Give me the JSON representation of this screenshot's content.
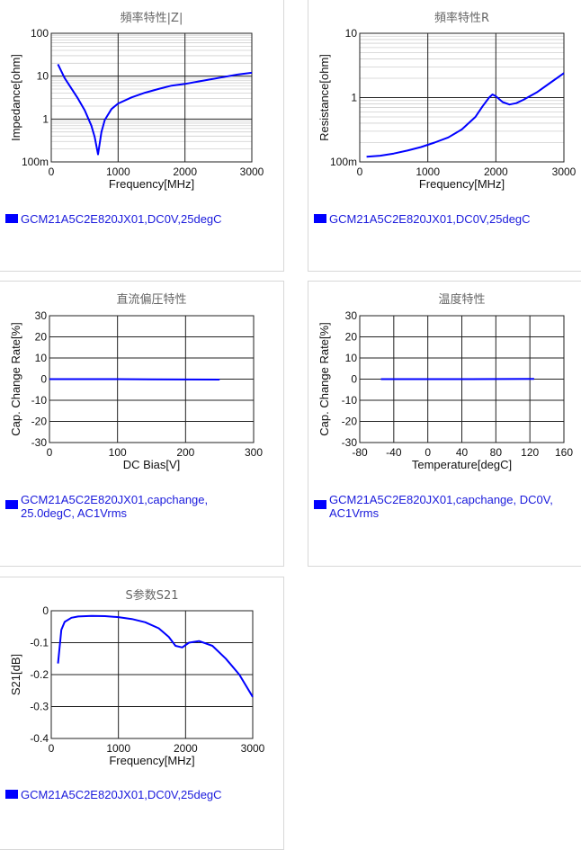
{
  "charts": [
    {
      "id": "z",
      "title": "頻率特性|Z|",
      "type": "line",
      "xlabel": "Frequency[MHz]",
      "ylabel": "Impedance[ohm]",
      "xlim": [
        0,
        3000
      ],
      "ylim": [
        0.1,
        100
      ],
      "yscale": "log",
      "x_ticks": [
        "0",
        "1000",
        "2000",
        "3000"
      ],
      "y_ticks": [
        "100m",
        "1",
        "10",
        "100"
      ],
      "grid": true,
      "series": [
        {
          "name": "GCM21A5C2E820JX01,DC0V,25degC",
          "color": "#0000ff",
          "x": [
            100,
            200,
            300,
            400,
            500,
            600,
            650,
            700,
            750,
            800,
            900,
            1000,
            1200,
            1400,
            1600,
            1800,
            2000,
            2200,
            2400,
            2600,
            2800,
            3000
          ],
          "y": [
            19,
            9,
            5.2,
            3.0,
            1.6,
            0.7,
            0.38,
            0.15,
            0.5,
            0.95,
            1.7,
            2.3,
            3.2,
            4.1,
            5.0,
            6.0,
            6.6,
            7.5,
            8.5,
            9.7,
            11,
            12
          ]
        }
      ],
      "legend": "GCM21A5C2E820JX01,DC0V,25degC"
    },
    {
      "id": "r",
      "title": "頻率特性R",
      "type": "line",
      "xlabel": "Frequency[MHz]",
      "ylabel": "Resistance[ohm]",
      "xlim": [
        0,
        3000
      ],
      "ylim": [
        0.1,
        10
      ],
      "yscale": "log",
      "x_ticks": [
        "0",
        "1000",
        "2000",
        "3000"
      ],
      "y_ticks": [
        "100m",
        "1",
        "10"
      ],
      "grid": true,
      "series": [
        {
          "name": "GCM21A5C2E820JX01,DC0V,25degC",
          "color": "#0000ff",
          "x": [
            100,
            300,
            500,
            700,
            900,
            1100,
            1300,
            1500,
            1700,
            1800,
            1900,
            1950,
            2000,
            2100,
            2200,
            2300,
            2400,
            2600,
            2800,
            3000
          ],
          "y": [
            0.12,
            0.125,
            0.135,
            0.15,
            0.17,
            0.2,
            0.24,
            0.32,
            0.5,
            0.72,
            1.0,
            1.12,
            1.05,
            0.85,
            0.78,
            0.82,
            0.92,
            1.2,
            1.7,
            2.4
          ]
        }
      ],
      "legend": "GCM21A5C2E820JX01,DC0V,25degC"
    },
    {
      "id": "dcbias",
      "title": "直流偏圧特性",
      "type": "line",
      "xlabel": "DC Bias[V]",
      "ylabel": "Cap. Change Rate[%]",
      "xlim": [
        0,
        300
      ],
      "ylim": [
        -30,
        30
      ],
      "yscale": "linear",
      "x_ticks": [
        "0",
        "100",
        "200",
        "300"
      ],
      "y_ticks": [
        "30",
        "20",
        "10",
        "0",
        "-10",
        "-20",
        "-30"
      ],
      "grid": true,
      "series": [
        {
          "name": "GCM21A5C2E820JX01,capchange, 25.0degC, AC1Vrms",
          "color": "#0000ff",
          "x": [
            0,
            50,
            100,
            150,
            200,
            250
          ],
          "y": [
            0,
            0,
            0,
            -0.1,
            -0.15,
            -0.2
          ]
        }
      ],
      "legend": "GCM21A5C2E820JX01,capchange, 25.0degC, AC1Vrms"
    },
    {
      "id": "temp",
      "title": "温度特性",
      "type": "line",
      "xlabel": "Temperature[degC]",
      "ylabel": "Cap. Change Rate[%]",
      "xlim": [
        -80,
        160
      ],
      "ylim": [
        -30,
        30
      ],
      "yscale": "linear",
      "x_ticks": [
        "-80",
        "-40",
        "0",
        "40",
        "80",
        "120",
        "160"
      ],
      "y_ticks": [
        "30",
        "20",
        "10",
        "0",
        "-10",
        "-20",
        "-30"
      ],
      "grid": true,
      "series": [
        {
          "name": "GCM21A5C2E820JX01,capchange, DC0V, AC1Vrms",
          "color": "#0000ff",
          "x": [
            -55,
            0,
            50,
            125
          ],
          "y": [
            0,
            0,
            0,
            0.1
          ]
        }
      ],
      "legend": "GCM21A5C2E820JX01,capchange, DC0V, AC1Vrms"
    },
    {
      "id": "s21",
      "title": "S参数S21",
      "type": "line",
      "xlabel": "Frequency[MHz]",
      "ylabel": "S21[dB]",
      "xlim": [
        0,
        3000
      ],
      "ylim": [
        -0.4,
        0
      ],
      "yscale": "linear",
      "x_ticks": [
        "0",
        "1000",
        "2000",
        "3000"
      ],
      "y_ticks": [
        "0",
        "-0.1",
        "-0.2",
        "-0.3",
        "-0.4"
      ],
      "grid": true,
      "series": [
        {
          "name": "GCM21A5C2E820JX01,DC0V,25degC",
          "color": "#0000ff",
          "x": [
            100,
            150,
            200,
            300,
            400,
            600,
            800,
            1000,
            1200,
            1400,
            1600,
            1750,
            1850,
            1950,
            2050,
            2200,
            2400,
            2600,
            2800,
            3000
          ],
          "y": [
            -0.165,
            -0.06,
            -0.035,
            -0.022,
            -0.018,
            -0.016,
            -0.017,
            -0.02,
            -0.026,
            -0.036,
            -0.055,
            -0.082,
            -0.11,
            -0.115,
            -0.1,
            -0.095,
            -0.11,
            -0.15,
            -0.2,
            -0.27
          ]
        }
      ],
      "legend": "GCM21A5C2E820JX01,DC0V,25degC"
    }
  ]
}
